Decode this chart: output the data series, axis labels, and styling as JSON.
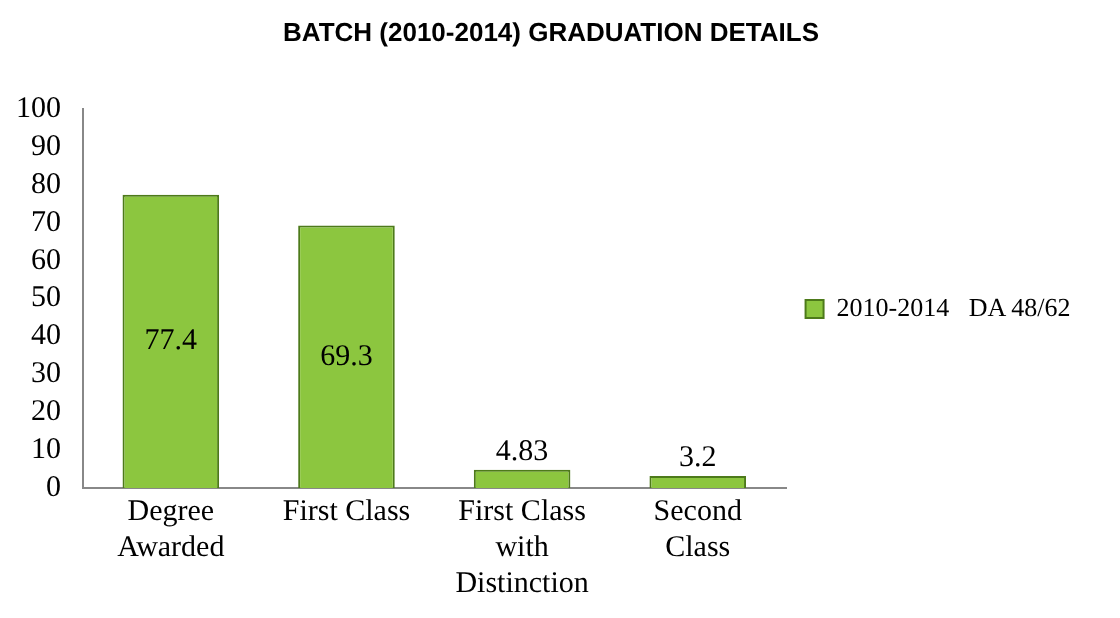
{
  "chart_data": {
    "type": "bar",
    "title": "BATCH (2010-2014) GRADUATION DETAILS",
    "categories": [
      "Degree Awarded",
      "First Class",
      "First Class with Distinction",
      "Second Class"
    ],
    "series": [
      {
        "name": "2010-2014   DA 48/62",
        "color": "#8cc63f",
        "values": [
          77.4,
          69.3,
          4.83,
          3.2
        ]
      }
    ],
    "ylim": [
      0,
      100
    ],
    "yticks": [
      0,
      10,
      20,
      30,
      40,
      50,
      60,
      70,
      80,
      90,
      100
    ],
    "grid": false,
    "legend": "right",
    "data_labels": true
  }
}
